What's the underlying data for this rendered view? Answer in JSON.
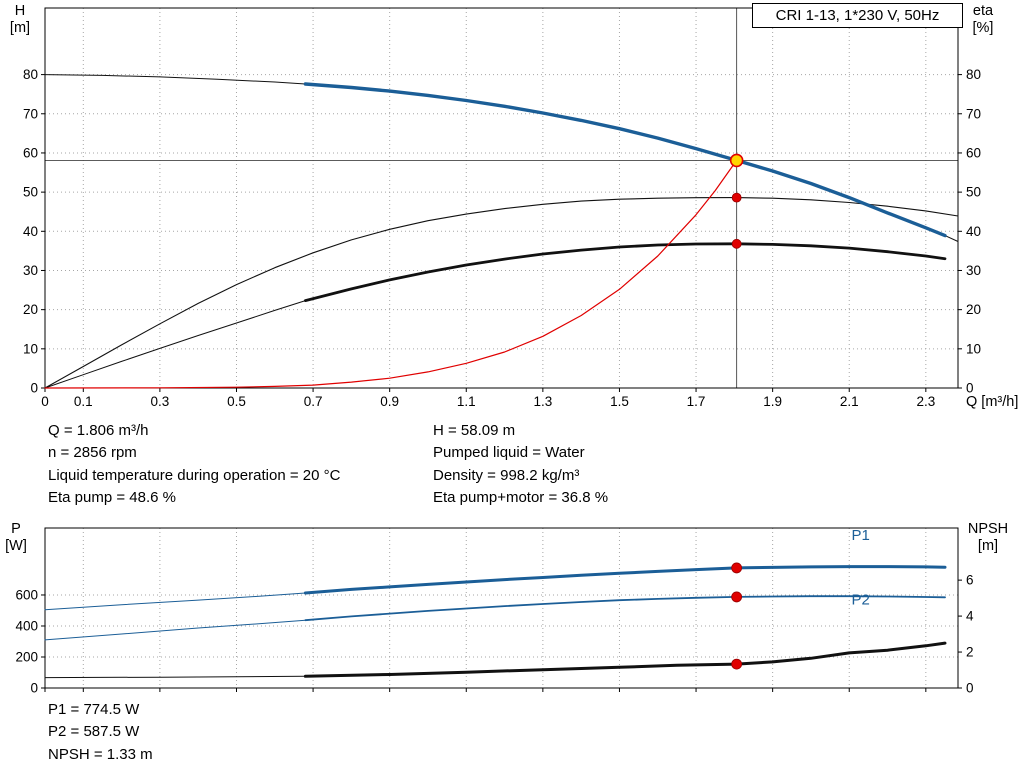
{
  "header": {
    "title_box": "CRI 1-13, 1*230 V, 50Hz"
  },
  "colors": {
    "curve_blue": "#1b5e97",
    "curve_black": "#111111",
    "curve_red": "#e00000",
    "duty_yellow": "#ffd500",
    "grid": "#a6a6a6",
    "ref_line": "#444444"
  },
  "info_top": {
    "left": [
      "Q = 1.806 m³/h",
      "n = 2856 rpm",
      "Liquid temperature during operation = 20 °C",
      "Eta pump = 48.6 %"
    ],
    "right": [
      "H = 58.09 m",
      "Pumped liquid = Water",
      "Density = 998.2 kg/m³",
      "Eta pump+motor = 36.8 %"
    ]
  },
  "info_bottom": [
    "P1 = 774.5 W",
    "P2 = 587.5 W",
    "NPSH = 1.33 m"
  ],
  "chart_data": [
    {
      "type": "line",
      "name": "hq-eta-chart",
      "title": "CRI 1-13, 1*230 V, 50Hz",
      "xlabel": "Q [m³/h]",
      "ylabel_left": [
        "H",
        "[m]"
      ],
      "ylabel_right": [
        "eta",
        "[%]"
      ],
      "xlim": [
        0,
        2.384
      ],
      "ylim_left": [
        0,
        97
      ],
      "ylim_right": [
        0,
        97
      ],
      "xticks": [
        0,
        0.1,
        0.3,
        0.5,
        0.7,
        0.9,
        1.1,
        1.3,
        1.5,
        1.7,
        1.9,
        2.1,
        2.3
      ],
      "yticks_left": [
        0,
        10,
        20,
        30,
        40,
        50,
        60,
        70,
        80
      ],
      "yticks_right": [
        0,
        10,
        20,
        30,
        40,
        50,
        60,
        70,
        80
      ],
      "show_x_labels": true,
      "grid": true,
      "duty_point": {
        "Q": 1.806,
        "H": 58.09,
        "eta_pump": 48.6,
        "eta_pump_motor": 36.8
      },
      "ref_lines": [
        {
          "name": "duty-flow-line",
          "orient": "v",
          "value": 1.806,
          "color": "#444444",
          "width": 0.9
        },
        {
          "name": "duty-head-line",
          "orient": "h",
          "value": 58.09,
          "color": "#444444",
          "width": 0.9
        }
      ],
      "series": [
        {
          "name": "pump-curve-ext-left",
          "axis": "left",
          "color": "#111111",
          "width": 1,
          "points": [
            [
              0,
              80
            ],
            [
              0.15,
              79.8
            ],
            [
              0.3,
              79.4
            ],
            [
              0.45,
              78.8
            ],
            [
              0.6,
              78.1
            ],
            [
              0.68,
              77.6
            ]
          ]
        },
        {
          "name": "pump-curve-ext-right",
          "axis": "left",
          "color": "#111111",
          "width": 1,
          "points": [
            [
              2.35,
              38.9
            ],
            [
              2.384,
              37.4
            ]
          ]
        },
        {
          "name": "eta-pump-motor-ext",
          "axis": "right",
          "color": "#111111",
          "width": 1,
          "points": [
            [
              0,
              0
            ],
            [
              0.1,
              3.4
            ],
            [
              0.2,
              6.8
            ],
            [
              0.3,
              10.1
            ],
            [
              0.4,
              13.4
            ],
            [
              0.5,
              16.6
            ],
            [
              0.6,
              19.8
            ],
            [
              0.68,
              22.3
            ]
          ]
        },
        {
          "name": "eta-pump-curve",
          "axis": "right",
          "color": "#111111",
          "width": 1.1,
          "points": [
            [
              0,
              0
            ],
            [
              0.1,
              5.5
            ],
            [
              0.2,
              11
            ],
            [
              0.3,
              16.4
            ],
            [
              0.4,
              21.6
            ],
            [
              0.5,
              26.4
            ],
            [
              0.6,
              30.7
            ],
            [
              0.7,
              34.5
            ],
            [
              0.8,
              37.8
            ],
            [
              0.9,
              40.5
            ],
            [
              1.0,
              42.7
            ],
            [
              1.1,
              44.4
            ],
            [
              1.2,
              45.8
            ],
            [
              1.3,
              46.9
            ],
            [
              1.4,
              47.7
            ],
            [
              1.5,
              48.2
            ],
            [
              1.6,
              48.45
            ],
            [
              1.7,
              48.58
            ],
            [
              1.806,
              48.6
            ],
            [
              1.9,
              48.45
            ],
            [
              2.0,
              48.05
            ],
            [
              2.1,
              47.35
            ],
            [
              2.2,
              46.4
            ],
            [
              2.3,
              45.2
            ],
            [
              2.384,
              43.9
            ]
          ]
        },
        {
          "name": "eta-pump-motor-curve",
          "axis": "right",
          "color": "#111111",
          "width": 2.8,
          "points": [
            [
              0.68,
              22.3
            ],
            [
              0.8,
              25.3
            ],
            [
              0.9,
              27.6
            ],
            [
              1.0,
              29.6
            ],
            [
              1.1,
              31.4
            ],
            [
              1.2,
              32.9
            ],
            [
              1.3,
              34.2
            ],
            [
              1.4,
              35.2
            ],
            [
              1.5,
              36.0
            ],
            [
              1.6,
              36.5
            ],
            [
              1.7,
              36.75
            ],
            [
              1.806,
              36.8
            ],
            [
              1.9,
              36.65
            ],
            [
              2.0,
              36.3
            ],
            [
              2.1,
              35.7
            ],
            [
              2.2,
              34.8
            ],
            [
              2.3,
              33.7
            ],
            [
              2.35,
              33.0
            ]
          ]
        },
        {
          "name": "system-curve",
          "axis": "left",
          "color": "#e00000",
          "width": 1.2,
          "points": [
            [
              0,
              0
            ],
            [
              0.3,
              0.05
            ],
            [
              0.5,
              0.2
            ],
            [
              0.6,
              0.4
            ],
            [
              0.7,
              0.75
            ],
            [
              0.8,
              1.5
            ],
            [
              0.9,
              2.5
            ],
            [
              1.0,
              4.1
            ],
            [
              1.1,
              6.3
            ],
            [
              1.2,
              9.2
            ],
            [
              1.3,
              13.2
            ],
            [
              1.4,
              18.5
            ],
            [
              1.5,
              25.2
            ],
            [
              1.6,
              33.7
            ],
            [
              1.7,
              44.2
            ],
            [
              1.75,
              50.4
            ],
            [
              1.806,
              58.09
            ]
          ]
        },
        {
          "name": "pump-curve",
          "axis": "left",
          "color": "#1b5e97",
          "width": 3.4,
          "points": [
            [
              0.68,
              77.6
            ],
            [
              0.8,
              76.7
            ],
            [
              0.9,
              75.8
            ],
            [
              1.0,
              74.7
            ],
            [
              1.1,
              73.4
            ],
            [
              1.2,
              71.9
            ],
            [
              1.3,
              70.2
            ],
            [
              1.4,
              68.3
            ],
            [
              1.5,
              66.2
            ],
            [
              1.6,
              63.8
            ],
            [
              1.7,
              61.1
            ],
            [
              1.806,
              58.09
            ],
            [
              1.9,
              55.4
            ],
            [
              2.0,
              52.2
            ],
            [
              2.1,
              48.6
            ],
            [
              2.2,
              44.7
            ],
            [
              2.3,
              40.9
            ],
            [
              2.35,
              38.9
            ]
          ]
        }
      ],
      "markers": [
        {
          "name": "eta-pump-point",
          "x": 1.806,
          "y": 48.6,
          "axis": "right",
          "r": 4.5,
          "fill": "#e00000",
          "stroke": "#9b0000",
          "sw": 0.8
        },
        {
          "name": "eta-pump-motor-point",
          "x": 1.806,
          "y": 36.8,
          "axis": "right",
          "r": 4.5,
          "fill": "#e00000",
          "stroke": "#9b0000",
          "sw": 0.8
        },
        {
          "name": "duty-point",
          "x": 1.806,
          "y": 58.09,
          "axis": "left",
          "r": 6,
          "fill": "#ffd500",
          "stroke": "#e00000",
          "sw": 1.6
        }
      ]
    },
    {
      "type": "line",
      "name": "power-npsh-chart",
      "xlabel": "",
      "ylabel_left": [
        "P",
        "[W]"
      ],
      "ylabel_right": [
        "NPSH",
        "[m]"
      ],
      "xlim": [
        0,
        2.384
      ],
      "ylim_left": [
        0,
        1032
      ],
      "ylim_right": [
        0,
        8.9
      ],
      "xticks": [
        0,
        0.1,
        0.3,
        0.5,
        0.7,
        0.9,
        1.1,
        1.3,
        1.5,
        1.7,
        1.9,
        2.1,
        2.3
      ],
      "yticks_left": [
        0,
        200,
        400,
        600
      ],
      "yticks_right": [
        0,
        2,
        4,
        6
      ],
      "show_x_labels": false,
      "grid": true,
      "duty_point": {
        "Q": 1.806,
        "P1": 774.5,
        "P2": 587.5,
        "NPSH": 1.33
      },
      "series": [
        {
          "name": "p1-curve-ext",
          "axis": "left",
          "color": "#1b5e97",
          "width": 1,
          "points": [
            [
              0,
              505
            ],
            [
              0.2,
              537
            ],
            [
              0.4,
              567
            ],
            [
              0.55,
              590
            ],
            [
              0.68,
              613
            ]
          ]
        },
        {
          "name": "p1-curve",
          "axis": "left",
          "color": "#1b5e97",
          "width": 3,
          "points": [
            [
              0.68,
              613
            ],
            [
              0.8,
              636
            ],
            [
              0.9,
              652
            ],
            [
              1.0,
              668
            ],
            [
              1.1,
              684
            ],
            [
              1.2,
              699
            ],
            [
              1.3,
              713
            ],
            [
              1.4,
              727
            ],
            [
              1.5,
              740
            ],
            [
              1.6,
              752
            ],
            [
              1.7,
              764
            ],
            [
              1.806,
              774.5
            ],
            [
              1.9,
              778
            ],
            [
              2.0,
              781
            ],
            [
              2.1,
              783
            ],
            [
              2.2,
              783
            ],
            [
              2.3,
              781
            ],
            [
              2.35,
              779
            ]
          ]
        },
        {
          "name": "p2-curve-ext",
          "axis": "left",
          "color": "#1b5e97",
          "width": 1,
          "points": [
            [
              0,
              310
            ],
            [
              0.2,
              348
            ],
            [
              0.4,
              387
            ],
            [
              0.55,
              413
            ],
            [
              0.68,
              437
            ]
          ]
        },
        {
          "name": "p2-curve",
          "axis": "left",
          "color": "#1b5e97",
          "width": 1.8,
          "points": [
            [
              0.68,
              437
            ],
            [
              0.8,
              462
            ],
            [
              0.9,
              480
            ],
            [
              1.0,
              497
            ],
            [
              1.1,
              513
            ],
            [
              1.2,
              528
            ],
            [
              1.3,
              542
            ],
            [
              1.4,
              555
            ],
            [
              1.5,
              566
            ],
            [
              1.6,
              575
            ],
            [
              1.7,
              582
            ],
            [
              1.806,
              587.5
            ],
            [
              1.9,
              590
            ],
            [
              2.0,
              592
            ],
            [
              2.1,
              592
            ],
            [
              2.2,
              590
            ],
            [
              2.3,
              587
            ],
            [
              2.35,
              585
            ]
          ]
        },
        {
          "name": "npsh-curve-ext",
          "axis": "right",
          "color": "#111111",
          "width": 1,
          "points": [
            [
              0,
              0.58
            ],
            [
              0.3,
              0.6
            ],
            [
              0.68,
              0.65
            ]
          ]
        },
        {
          "name": "npsh-curve",
          "axis": "right",
          "color": "#111111",
          "width": 3,
          "points": [
            [
              0.68,
              0.65
            ],
            [
              0.9,
              0.75
            ],
            [
              1.1,
              0.88
            ],
            [
              1.3,
              1.02
            ],
            [
              1.5,
              1.15
            ],
            [
              1.65,
              1.26
            ],
            [
              1.806,
              1.33
            ],
            [
              1.9,
              1.45
            ],
            [
              2.0,
              1.65
            ],
            [
              2.1,
              1.95
            ],
            [
              2.2,
              2.1
            ],
            [
              2.3,
              2.35
            ],
            [
              2.35,
              2.5
            ]
          ]
        }
      ],
      "markers": [
        {
          "name": "p1-point",
          "x": 1.806,
          "y": 774.5,
          "axis": "left",
          "r": 5,
          "fill": "#e00000",
          "stroke": "#9b0000",
          "sw": 0.8
        },
        {
          "name": "p2-point",
          "x": 1.806,
          "y": 587.5,
          "axis": "left",
          "r": 5,
          "fill": "#e00000",
          "stroke": "#9b0000",
          "sw": 0.8
        },
        {
          "name": "npsh-point",
          "x": 1.806,
          "y": 1.33,
          "axis": "right",
          "r": 5,
          "fill": "#e00000",
          "stroke": "#9b0000",
          "sw": 0.8
        }
      ],
      "labels": [
        {
          "name": "p1-label",
          "text": "P1",
          "x": 2.13,
          "y": 955,
          "axis": "left",
          "color": "#1b5e97"
        },
        {
          "name": "p2-label",
          "text": "P2",
          "x": 2.13,
          "y": 540,
          "axis": "left",
          "color": "#1b5e97"
        }
      ]
    }
  ]
}
